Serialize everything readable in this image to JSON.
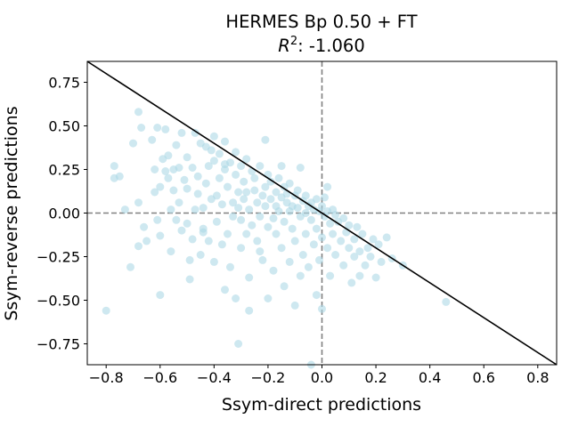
{
  "chart_data": {
    "type": "scatter",
    "title_line1": "HERMES Bp 0.50 + FT",
    "title_r2_prefix": "R",
    "title_r2_sup": "2",
    "title_r2_value": ": -1.060",
    "xlabel": "Ssym-direct predictions",
    "ylabel": "Ssym-reverse predictions",
    "xlim": [
      -0.87,
      0.87
    ],
    "ylim": [
      -0.87,
      0.87
    ],
    "xticks": [
      -0.8,
      -0.6,
      -0.4,
      -0.2,
      0.0,
      0.2,
      0.4,
      0.6,
      0.8
    ],
    "xtick_labels": [
      "−0.8",
      "−0.6",
      "−0.4",
      "−0.2",
      "0.0",
      "0.2",
      "0.4",
      "0.6",
      "0.8"
    ],
    "yticks": [
      0.75,
      0.5,
      0.25,
      0.0,
      -0.25,
      -0.5,
      -0.75
    ],
    "ytick_labels": [
      "0.75",
      "0.50",
      "0.25",
      "0.00",
      "−0.25",
      "−0.50",
      "−0.75"
    ],
    "point_color": "#add8e6",
    "point_opacity": 0.6,
    "reference_lines": {
      "diagonal": {
        "from": [
          -0.87,
          0.87
        ],
        "to": [
          0.87,
          -0.87
        ],
        "color": "#000000"
      },
      "horizontal_zero": {
        "y": 0,
        "style": "dashed",
        "color": "#808080"
      },
      "vertical_zero": {
        "x": 0,
        "style": "dashed",
        "color": "#808080"
      }
    },
    "grid": false,
    "points": [
      [
        -0.8,
        -0.56
      ],
      [
        -0.77,
        0.27
      ],
      [
        -0.77,
        0.2
      ],
      [
        -0.75,
        0.21
      ],
      [
        -0.73,
        0.02
      ],
      [
        -0.71,
        -0.31
      ],
      [
        -0.7,
        0.4
      ],
      [
        -0.68,
        0.58
      ],
      [
        -0.68,
        0.06
      ],
      [
        -0.68,
        -0.19
      ],
      [
        -0.67,
        0.49
      ],
      [
        -0.66,
        -0.08
      ],
      [
        -0.65,
        -0.16
      ],
      [
        -0.63,
        0.42
      ],
      [
        -0.62,
        0.25
      ],
      [
        -0.62,
        0.12
      ],
      [
        -0.61,
        0.49
      ],
      [
        -0.61,
        -0.04
      ],
      [
        -0.6,
        -0.47
      ],
      [
        -0.6,
        0.15
      ],
      [
        -0.6,
        -0.13
      ],
      [
        -0.59,
        0.31
      ],
      [
        -0.58,
        0.24
      ],
      [
        -0.58,
        0.48
      ],
      [
        -0.57,
        0.33
      ],
      [
        -0.57,
        0.2
      ],
      [
        -0.56,
        0.02
      ],
      [
        -0.56,
        -0.22
      ],
      [
        -0.55,
        0.25
      ],
      [
        -0.55,
        0.13
      ],
      [
        -0.54,
        0.39
      ],
      [
        -0.54,
        -0.04
      ],
      [
        -0.53,
        0.26
      ],
      [
        -0.52,
        -0.1
      ],
      [
        -0.52,
        0.46
      ],
      [
        -0.51,
        0.19
      ],
      [
        -0.5,
        0.14
      ],
      [
        -0.5,
        -0.06
      ],
      [
        -0.5,
        0.32
      ],
      [
        -0.49,
        -0.27
      ],
      [
        -0.49,
        -0.38
      ],
      [
        -0.48,
        -0.15
      ],
      [
        -0.48,
        0.26
      ],
      [
        -0.47,
        0.02
      ],
      [
        -0.47,
        0.46
      ],
      [
        -0.46,
        0.21
      ],
      [
        -0.46,
        0.11
      ],
      [
        -0.45,
        -0.24
      ],
      [
        -0.45,
        0.4
      ],
      [
        -0.44,
        0.03
      ],
      [
        -0.44,
        -0.09
      ],
      [
        -0.43,
        0.38
      ],
      [
        -0.43,
        0.17
      ],
      [
        -0.42,
        0.27
      ],
      [
        -0.42,
        -0.16
      ],
      [
        -0.41,
        0.36
      ],
      [
        -0.41,
        0.08
      ],
      [
        -0.4,
        0.3
      ],
      [
        -0.4,
        -0.28
      ],
      [
        -0.4,
        0.44
      ],
      [
        -0.39,
        0.1
      ],
      [
        -0.39,
        -0.05
      ],
      [
        -0.38,
        0.2
      ],
      [
        -0.38,
        0.34
      ],
      [
        -0.37,
        -0.18
      ],
      [
        -0.37,
        0.05
      ],
      [
        -0.36,
        0.25
      ],
      [
        -0.36,
        -0.44
      ],
      [
        -0.36,
        0.41
      ],
      [
        -0.35,
        -0.12
      ],
      [
        -0.35,
        0.15
      ],
      [
        -0.34,
        0.29
      ],
      [
        -0.34,
        -0.31
      ],
      [
        -0.33,
        0.06
      ],
      [
        -0.33,
        -0.02
      ],
      [
        -0.32,
        0.22
      ],
      [
        -0.32,
        -0.49
      ],
      [
        -0.32,
        0.35
      ],
      [
        -0.31,
        -0.75
      ],
      [
        -0.31,
        0.12
      ],
      [
        -0.3,
        0.27
      ],
      [
        -0.3,
        -0.04
      ],
      [
        -0.3,
        -0.2
      ],
      [
        -0.29,
        0.18
      ],
      [
        -0.29,
        0.08
      ],
      [
        -0.28,
        -0.12
      ],
      [
        -0.28,
        0.31
      ],
      [
        -0.27,
        0.02
      ],
      [
        -0.27,
        -0.37
      ],
      [
        -0.26,
        0.24
      ],
      [
        -0.26,
        -0.07
      ],
      [
        -0.25,
        0.13
      ],
      [
        -0.25,
        0.2
      ],
      [
        -0.24,
        -0.16
      ],
      [
        -0.24,
        0.06
      ],
      [
        -0.23,
        -0.02
      ],
      [
        -0.23,
        0.27
      ],
      [
        -0.22,
        0.1
      ],
      [
        -0.22,
        -0.27
      ],
      [
        -0.21,
        0.15
      ],
      [
        -0.21,
        0.04
      ],
      [
        -0.2,
        -0.08
      ],
      [
        -0.2,
        0.22
      ],
      [
        -0.2,
        -0.49
      ],
      [
        -0.19,
        0.08
      ],
      [
        -0.19,
        0.18
      ],
      [
        -0.18,
        -0.03
      ],
      [
        -0.18,
        -0.33
      ],
      [
        -0.17,
        0.12
      ],
      [
        -0.17,
        0.04
      ],
      [
        -0.17,
        -0.12
      ],
      [
        -0.16,
        0.2
      ],
      [
        -0.16,
        0.01
      ],
      [
        -0.15,
        -0.2
      ],
      [
        -0.15,
        0.09
      ],
      [
        -0.14,
        0.15
      ],
      [
        -0.14,
        -0.05
      ],
      [
        -0.14,
        -0.42
      ],
      [
        -0.13,
        0.06
      ],
      [
        -0.13,
        0.11
      ],
      [
        -0.12,
        -0.28
      ],
      [
        -0.12,
        0.01
      ],
      [
        -0.12,
        0.17
      ],
      [
        -0.11,
        -0.09
      ],
      [
        -0.11,
        0.04
      ],
      [
        -0.1,
        0.1
      ],
      [
        -0.1,
        -0.16
      ],
      [
        -0.1,
        -0.53
      ],
      [
        -0.09,
        0.03
      ],
      [
        -0.09,
        0.13
      ],
      [
        -0.08,
        -0.02
      ],
      [
        -0.08,
        -0.36
      ],
      [
        -0.07,
        0.07
      ],
      [
        -0.07,
        -0.24
      ],
      [
        -0.06,
        0.0
      ],
      [
        -0.06,
        0.1
      ],
      [
        -0.06,
        -0.12
      ],
      [
        -0.05,
        0.04
      ],
      [
        -0.05,
        -0.31
      ],
      [
        -0.04,
        0.06
      ],
      [
        -0.04,
        -0.04
      ],
      [
        -0.03,
        0.02
      ],
      [
        -0.03,
        -0.18
      ],
      [
        -0.02,
        0.08
      ],
      [
        -0.02,
        -0.09
      ],
      [
        -0.02,
        -0.47
      ],
      [
        -0.01,
        0.01
      ],
      [
        -0.01,
        -0.27
      ],
      [
        0.0,
        0.04
      ],
      [
        0.0,
        -0.14
      ],
      [
        0.0,
        -0.55
      ],
      [
        0.01,
        -0.02
      ],
      [
        0.01,
        0.09
      ],
      [
        0.02,
        -0.2
      ],
      [
        0.02,
        0.01
      ],
      [
        0.03,
        -0.06
      ],
      [
        0.03,
        -0.36
      ],
      [
        0.04,
        0.02
      ],
      [
        0.04,
        -0.12
      ],
      [
        0.05,
        -0.24
      ],
      [
        0.05,
        -0.01
      ],
      [
        0.06,
        -0.05
      ],
      [
        0.07,
        -0.16
      ],
      [
        0.08,
        -0.3
      ],
      [
        0.08,
        -0.03
      ],
      [
        0.09,
        -0.11
      ],
      [
        0.1,
        -0.2
      ],
      [
        0.1,
        -0.07
      ],
      [
        0.11,
        -0.4
      ],
      [
        0.12,
        -0.15
      ],
      [
        0.12,
        -0.25
      ],
      [
        0.13,
        -0.08
      ],
      [
        0.14,
        -0.22
      ],
      [
        0.14,
        -0.36
      ],
      [
        0.15,
        -0.12
      ],
      [
        0.16,
        -0.3
      ],
      [
        0.17,
        -0.2
      ],
      [
        0.18,
        -0.25
      ],
      [
        0.19,
        -0.15
      ],
      [
        0.2,
        -0.37
      ],
      [
        0.21,
        -0.18
      ],
      [
        0.22,
        -0.28
      ],
      [
        0.24,
        -0.14
      ],
      [
        0.26,
        -0.26
      ],
      [
        0.3,
        -0.3
      ],
      [
        0.46,
        -0.51
      ],
      [
        -0.27,
        -0.56
      ],
      [
        -0.04,
        -0.87
      ],
      [
        -0.23,
        -0.22
      ],
      [
        -0.44,
        -0.11
      ],
      [
        -0.53,
        0.06
      ],
      [
        -0.21,
        0.42
      ],
      [
        -0.36,
        0.28
      ],
      [
        -0.15,
        0.27
      ],
      [
        -0.08,
        0.26
      ],
      [
        0.02,
        0.15
      ],
      [
        -0.28,
        0.12
      ],
      [
        -0.31,
        0.03
      ]
    ]
  }
}
